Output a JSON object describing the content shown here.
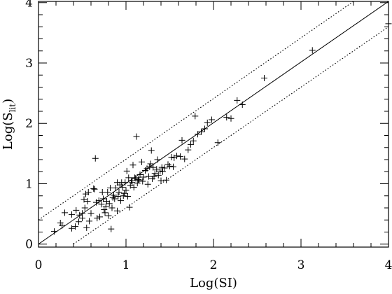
{
  "chart_data": {
    "type": "scatter",
    "title": "",
    "xlabel": "Log(SI)",
    "ylabel": {
      "prefix": "Log(S",
      "subscript": "lit",
      "suffix": ")"
    },
    "xlim": [
      0,
      4
    ],
    "ylim": [
      -0.05,
      4.02
    ],
    "xticks": [
      "0",
      "1",
      "2",
      "3",
      "4"
    ],
    "yticks": [
      "0",
      "1",
      "2",
      "3",
      "4"
    ],
    "grid": false,
    "legend": "none",
    "marker": "plus",
    "lines": [
      {
        "style": "solid",
        "points": [
          [
            0,
            0
          ],
          [
            4,
            4.02
          ]
        ]
      },
      {
        "style": "dotted",
        "points": [
          [
            0,
            0.4
          ],
          [
            3.6,
            4.02
          ]
        ]
      },
      {
        "style": "dotted",
        "points": [
          [
            0.4,
            0
          ],
          [
            4,
            3.6
          ]
        ]
      }
    ],
    "points": [
      [
        0.18,
        0.21
      ],
      [
        0.25,
        0.35
      ],
      [
        0.27,
        0.31
      ],
      [
        0.3,
        0.52
      ],
      [
        0.38,
        0.26
      ],
      [
        0.38,
        0.49
      ],
      [
        0.42,
        0.29
      ],
      [
        0.43,
        0.56
      ],
      [
        0.46,
        0.37
      ],
      [
        0.47,
        0.48
      ],
      [
        0.5,
        0.51
      ],
      [
        0.5,
        0.43
      ],
      [
        0.52,
        0.74
      ],
      [
        0.53,
        0.6
      ],
      [
        0.54,
        0.83
      ],
      [
        0.55,
        0.27
      ],
      [
        0.56,
        0.71
      ],
      [
        0.57,
        0.86
      ],
      [
        0.58,
        0.38
      ],
      [
        0.6,
        0.51
      ],
      [
        0.63,
        0.92
      ],
      [
        0.64,
        0.91
      ],
      [
        0.65,
        1.42
      ],
      [
        0.66,
        0.69
      ],
      [
        0.67,
        0.43
      ],
      [
        0.69,
        0.72
      ],
      [
        0.7,
        0.45
      ],
      [
        0.72,
        0.66
      ],
      [
        0.73,
        0.86
      ],
      [
        0.74,
        0.75
      ],
      [
        0.75,
        0.57
      ],
      [
        0.76,
        0.52
      ],
      [
        0.77,
        0.62
      ],
      [
        0.78,
        0.71
      ],
      [
        0.79,
        0.86
      ],
      [
        0.8,
        0.47
      ],
      [
        0.81,
        0.67
      ],
      [
        0.82,
        0.93
      ],
      [
        0.83,
        0.25
      ],
      [
        0.84,
        0.6
      ],
      [
        0.85,
        0.77
      ],
      [
        0.86,
        0.81
      ],
      [
        0.87,
        0.75
      ],
      [
        0.88,
        0.93
      ],
      [
        0.9,
        1.02
      ],
      [
        0.9,
        0.55
      ],
      [
        0.91,
        0.79
      ],
      [
        0.92,
        0.86
      ],
      [
        0.93,
        0.98
      ],
      [
        0.94,
        0.72
      ],
      [
        0.95,
        1.02
      ],
      [
        0.96,
        0.94
      ],
      [
        0.97,
        0.8
      ],
      [
        0.98,
        0.84
      ],
      [
        0.99,
        1.02
      ],
      [
        1.0,
        0.89
      ],
      [
        1.01,
        1.21
      ],
      [
        1.02,
        0.79
      ],
      [
        1.03,
        1.1
      ],
      [
        1.04,
        0.61
      ],
      [
        1.05,
        0.97
      ],
      [
        1.06,
        1.05
      ],
      [
        1.07,
        1.02
      ],
      [
        1.08,
        1.31
      ],
      [
        1.09,
        0.94
      ],
      [
        1.1,
        1.1
      ],
      [
        1.11,
        1.09
      ],
      [
        1.12,
        1.78
      ],
      [
        1.13,
        1.01
      ],
      [
        1.14,
        1.07
      ],
      [
        1.15,
        1.06
      ],
      [
        1.16,
        1.15
      ],
      [
        1.18,
        1.36
      ],
      [
        1.19,
        1.04
      ],
      [
        1.2,
        1.11
      ],
      [
        1.22,
        1.22
      ],
      [
        1.24,
        1.25
      ],
      [
        1.25,
        0.99
      ],
      [
        1.26,
        1.12
      ],
      [
        1.27,
        1.28
      ],
      [
        1.28,
        1.33
      ],
      [
        1.29,
        1.55
      ],
      [
        1.3,
        1.08
      ],
      [
        1.31,
        1.27
      ],
      [
        1.32,
        1.12
      ],
      [
        1.33,
        1.17
      ],
      [
        1.35,
        1.24
      ],
      [
        1.36,
        1.4
      ],
      [
        1.37,
        1.14
      ],
      [
        1.39,
        1.21
      ],
      [
        1.4,
        1.05
      ],
      [
        1.41,
        1.27
      ],
      [
        1.42,
        1.2
      ],
      [
        1.44,
        1.26
      ],
      [
        1.46,
        1.06
      ],
      [
        1.48,
        1.32
      ],
      [
        1.5,
        1.29
      ],
      [
        1.52,
        1.44
      ],
      [
        1.54,
        1.28
      ],
      [
        1.55,
        1.43
      ],
      [
        1.58,
        1.46
      ],
      [
        1.62,
        1.45
      ],
      [
        1.64,
        1.72
      ],
      [
        1.67,
        1.41
      ],
      [
        1.71,
        1.56
      ],
      [
        1.74,
        1.65
      ],
      [
        1.77,
        1.71
      ],
      [
        1.79,
        2.12
      ],
      [
        1.82,
        1.82
      ],
      [
        1.86,
        1.86
      ],
      [
        1.9,
        1.91
      ],
      [
        1.93,
        2.01
      ],
      [
        1.98,
        2.06
      ],
      [
        2.05,
        1.68
      ],
      [
        2.15,
        2.1
      ],
      [
        2.2,
        2.08
      ],
      [
        2.27,
        2.38
      ],
      [
        2.33,
        2.31
      ],
      [
        2.58,
        2.75
      ],
      [
        3.13,
        3.21
      ],
      [
        4.0,
        3.65
      ]
    ]
  }
}
